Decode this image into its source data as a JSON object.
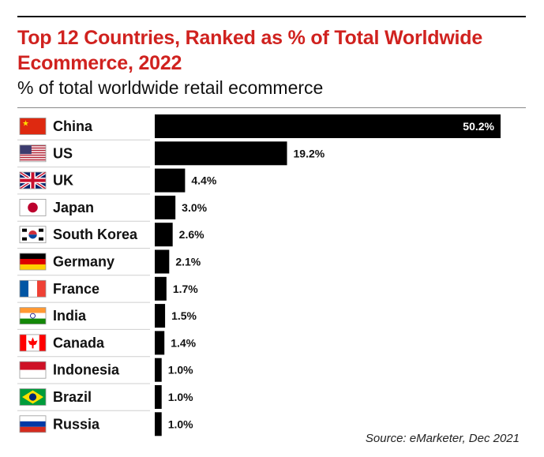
{
  "title": "Top 12 Countries, Ranked as % of Total Worldwide Ecommerce, 2022",
  "subtitle": "% of total worldwide retail ecommerce",
  "source": "Source: eMarketer, Dec 2021",
  "chart_data": {
    "type": "bar",
    "orientation": "horizontal",
    "title": "Top 12 Countries, Ranked as % of Total Worldwide Ecommerce, 2022",
    "subtitle": "% of total worldwide retail ecommerce",
    "categories": [
      "China",
      "US",
      "UK",
      "Japan",
      "South Korea",
      "Germany",
      "France",
      "India",
      "Canada",
      "Indonesia",
      "Brazil",
      "Russia"
    ],
    "values": [
      50.2,
      19.2,
      4.4,
      3.0,
      2.6,
      2.1,
      1.7,
      1.5,
      1.4,
      1.0,
      1.0,
      1.0
    ],
    "value_labels": [
      "50.2%",
      "19.2%",
      "4.4%",
      "3.0%",
      "2.6%",
      "2.1%",
      "1.7%",
      "1.5%",
      "1.4%",
      "1.0%",
      "1.0%",
      "1.0%"
    ],
    "flags": [
      "china-flag-icon",
      "us-flag-icon",
      "uk-flag-icon",
      "japan-flag-icon",
      "south-korea-flag-icon",
      "germany-flag-icon",
      "france-flag-icon",
      "india-flag-icon",
      "canada-flag-icon",
      "indonesia-flag-icon",
      "brazil-flag-icon",
      "russia-flag-icon"
    ],
    "xlim": [
      0,
      50.2
    ],
    "grid": false,
    "bar_color": "#000000"
  },
  "colors": {
    "title": "#d0221f",
    "bar": "#000000"
  }
}
